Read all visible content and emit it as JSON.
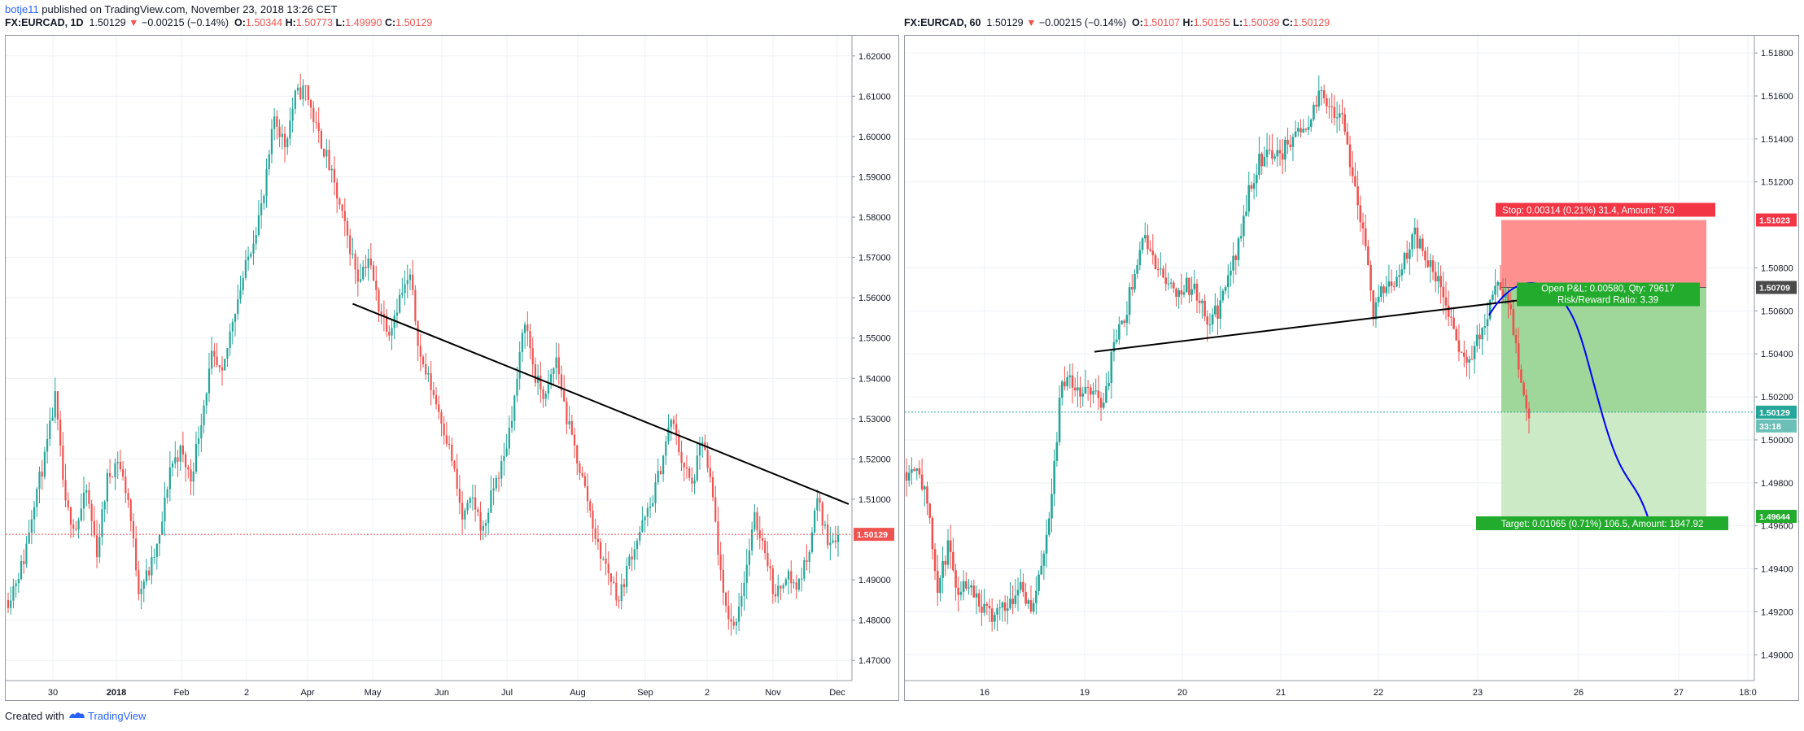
{
  "publish": {
    "user": "botje11",
    "text": " published on TradingView.com, November 23, 2018 13:26 CET"
  },
  "footer": {
    "created": "Created with",
    "brand": "TradingView"
  },
  "colors": {
    "up": "#26a69a",
    "down": "#ef5350",
    "trendline": "#000000",
    "projection": "#0000ff",
    "stop_fill": "#ff8a8a",
    "target_fill": "#9fd69a"
  },
  "chart_data": [
    {
      "type": "candlestick",
      "header": {
        "symbol": "FX:EURCAD, 1D",
        "price": "1.50129",
        "change": "−0.00215 (−0.14%)",
        "o": "1.50344",
        "h": "1.50773",
        "l": "1.49990",
        "c": "1.50129"
      },
      "ylim": [
        1.465,
        1.625
      ],
      "y_ticks": [
        "1.62000",
        "1.61000",
        "1.60000",
        "1.59000",
        "1.58000",
        "1.57000",
        "1.56000",
        "1.55000",
        "1.54000",
        "1.53000",
        "1.52000",
        "1.51000",
        "1.49000",
        "1.48000",
        "1.47000"
      ],
      "x_ticks": [
        "30",
        "2018",
        "Feb",
        "2",
        "Apr",
        "May",
        "Jun",
        "Jul",
        "Aug",
        "Sep",
        "2",
        "Nov",
        "Dec"
      ],
      "last_price_label": "1.50129",
      "path_anchors": [
        [
          0,
          1.485
        ],
        [
          6,
          1.495
        ],
        [
          10,
          1.51
        ],
        [
          14,
          1.52
        ],
        [
          18,
          1.535
        ],
        [
          22,
          1.508
        ],
        [
          26,
          1.503
        ],
        [
          30,
          1.512
        ],
        [
          34,
          1.497
        ],
        [
          38,
          1.515
        ],
        [
          42,
          1.52
        ],
        [
          46,
          1.51
        ],
        [
          50,
          1.488
        ],
        [
          54,
          1.492
        ],
        [
          58,
          1.5
        ],
        [
          62,
          1.518
        ],
        [
          66,
          1.522
        ],
        [
          70,
          1.515
        ],
        [
          74,
          1.53
        ],
        [
          78,
          1.545
        ],
        [
          82,
          1.54
        ],
        [
          86,
          1.555
        ],
        [
          90,
          1.565
        ],
        [
          94,
          1.575
        ],
        [
          98,
          1.585
        ],
        [
          102,
          1.605
        ],
        [
          106,
          1.598
        ],
        [
          110,
          1.61
        ],
        [
          114,
          1.612
        ],
        [
          118,
          1.602
        ],
        [
          122,
          1.595
        ],
        [
          126,
          1.585
        ],
        [
          130,
          1.575
        ],
        [
          134,
          1.565
        ],
        [
          138,
          1.57
        ],
        [
          142,
          1.558
        ],
        [
          146,
          1.552
        ],
        [
          150,
          1.56
        ],
        [
          154,
          1.565
        ],
        [
          158,
          1.545
        ],
        [
          162,
          1.538
        ],
        [
          166,
          1.53
        ],
        [
          170,
          1.52
        ],
        [
          174,
          1.505
        ],
        [
          178,
          1.51
        ],
        [
          182,
          1.502
        ],
        [
          186,
          1.513
        ],
        [
          190,
          1.52
        ],
        [
          194,
          1.535
        ],
        [
          198,
          1.555
        ],
        [
          202,
          1.54
        ],
        [
          206,
          1.535
        ],
        [
          210,
          1.545
        ],
        [
          214,
          1.53
        ],
        [
          218,
          1.52
        ],
        [
          222,
          1.51
        ],
        [
          226,
          1.498
        ],
        [
          230,
          1.492
        ],
        [
          234,
          1.485
        ],
        [
          238,
          1.495
        ],
        [
          242,
          1.502
        ],
        [
          246,
          1.508
        ],
        [
          250,
          1.518
        ],
        [
          254,
          1.53
        ],
        [
          258,
          1.52
        ],
        [
          262,
          1.513
        ],
        [
          266,
          1.525
        ],
        [
          270,
          1.51
        ],
        [
          274,
          1.485
        ],
        [
          278,
          1.478
        ],
        [
          282,
          1.49
        ],
        [
          286,
          1.505
        ],
        [
          290,
          1.498
        ],
        [
          294,
          1.485
        ],
        [
          298,
          1.492
        ],
        [
          302,
          1.488
        ],
        [
          306,
          1.495
        ],
        [
          310,
          1.51
        ],
        [
          314,
          1.5
        ],
        [
          318,
          1.5013
        ]
      ]
    },
    {
      "type": "candlestick",
      "header": {
        "symbol": "FX:EURCAD, 60",
        "price": "1.50129",
        "change": "−0.00215 (−0.14%)",
        "o": "1.50107",
        "h": "1.50155",
        "l": "1.50039",
        "c": "1.50129"
      },
      "ylim": [
        1.4888,
        1.5188
      ],
      "y_ticks": [
        "1.51800",
        "1.51600",
        "1.51400",
        "1.51200",
        "1.50800",
        "1.50600",
        "1.50400",
        "1.50200",
        "1.50000",
        "1.49800",
        "1.49600",
        "1.49400",
        "1.49200",
        "1.49000"
      ],
      "x_ticks": [
        "16",
        "19",
        "20",
        "21",
        "22",
        "23",
        "26",
        "27",
        "18:0"
      ],
      "labels": {
        "stop_price": "1.51023",
        "entry_price": "1.50709",
        "last_price": "1.50129",
        "countdown": "33:18",
        "target_price": "1.49644"
      },
      "position": {
        "stop": "Stop: 0.00314 (0.21%) 31.4, Amount: 750",
        "pnl": "Open P&L: 0.00580, Qty: 79617",
        "rr": "Risk/Reward Ratio: 3.39",
        "target": "Target: 0.01065 (0.71%) 106.5, Amount: 1847.92",
        "stop_level": 1.51023,
        "entry_level": 1.50709,
        "target_level": 1.49644
      },
      "path_anchors": [
        [
          0,
          1.4985
        ],
        [
          4,
          1.499
        ],
        [
          8,
          1.497
        ],
        [
          12,
          1.493
        ],
        [
          16,
          1.495
        ],
        [
          20,
          1.493
        ],
        [
          24,
          1.4935
        ],
        [
          28,
          1.4925
        ],
        [
          32,
          1.4918
        ],
        [
          36,
          1.4922
        ],
        [
          40,
          1.4925
        ],
        [
          44,
          1.4935
        ],
        [
          48,
          1.492
        ],
        [
          52,
          1.494
        ],
        [
          56,
          1.4975
        ],
        [
          60,
          1.503
        ],
        [
          64,
          1.5025
        ],
        [
          68,
          1.502
        ],
        [
          72,
          1.5025
        ],
        [
          76,
          1.5015
        ],
        [
          80,
          1.5045
        ],
        [
          84,
          1.5055
        ],
        [
          88,
          1.508
        ],
        [
          92,
          1.5095
        ],
        [
          96,
          1.508
        ],
        [
          100,
          1.5075
        ],
        [
          104,
          1.507
        ],
        [
          108,
          1.5072
        ],
        [
          112,
          1.5068
        ],
        [
          116,
          1.5055
        ],
        [
          120,
          1.506
        ],
        [
          124,
          1.5075
        ],
        [
          128,
          1.509
        ],
        [
          132,
          1.5115
        ],
        [
          136,
          1.513
        ],
        [
          140,
          1.5135
        ],
        [
          144,
          1.5132
        ],
        [
          148,
          1.514
        ],
        [
          152,
          1.5145
        ],
        [
          156,
          1.515
        ],
        [
          160,
          1.5162
        ],
        [
          164,
          1.5155
        ],
        [
          168,
          1.5148
        ],
        [
          172,
          1.5125
        ],
        [
          176,
          1.5095
        ],
        [
          180,
          1.506
        ],
        [
          184,
          1.507
        ],
        [
          188,
          1.5075
        ],
        [
          192,
          1.5085
        ],
        [
          196,
          1.5095
        ],
        [
          200,
          1.5085
        ],
        [
          204,
          1.5075
        ],
        [
          208,
          1.5065
        ],
        [
          212,
          1.5045
        ],
        [
          216,
          1.5035
        ],
        [
          220,
          1.5045
        ],
        [
          224,
          1.506
        ],
        [
          228,
          1.5072
        ],
        [
          232,
          1.5065
        ],
        [
          236,
          1.5035
        ],
        [
          240,
          1.5013
        ]
      ]
    }
  ]
}
